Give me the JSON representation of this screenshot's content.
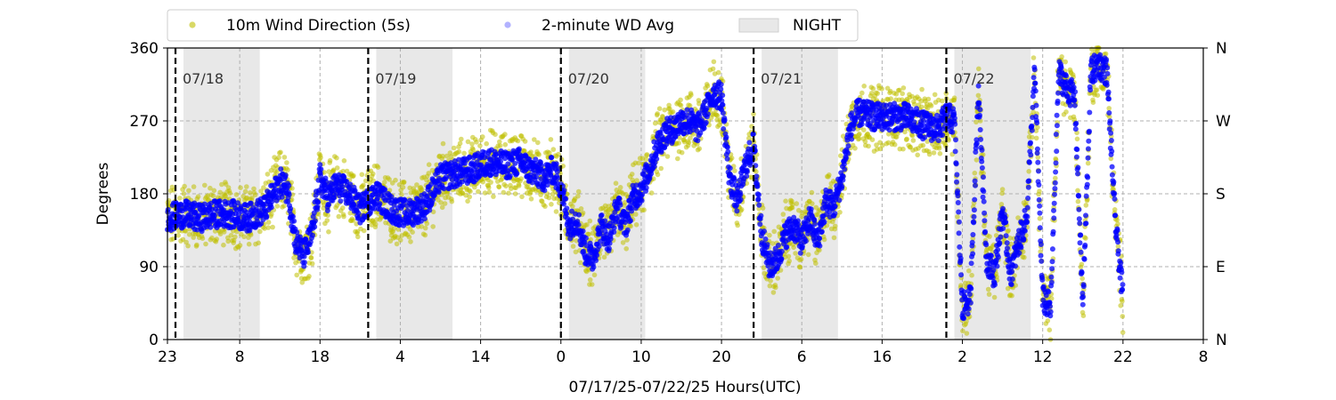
{
  "chart_data": {
    "type": "scatter",
    "title": "",
    "xlabel": "07/17/25-07/22/25  Hours(UTC)",
    "ylabel": "Degrees",
    "x_unit": "hours_elapsed",
    "xlim": [
      0,
      129
    ],
    "ylim": [
      0,
      360
    ],
    "yticks": [
      0,
      90,
      180,
      270,
      360
    ],
    "xtick_hours": [
      0,
      9,
      19,
      29,
      39,
      49,
      59,
      69,
      79,
      89,
      99,
      109,
      119,
      129
    ],
    "xtick_labels": [
      "23",
      "8",
      "18",
      "4",
      "14",
      "0",
      "10",
      "20",
      "6",
      "16",
      "2",
      "12",
      "22",
      "8"
    ],
    "right_axis_labels": [
      "N",
      "E",
      "S",
      "W",
      "N"
    ],
    "grid": true,
    "legend_placement": "top",
    "legend": [
      {
        "name": "10m Wind Direction (5s)",
        "color": "#bfbf00",
        "marker": "circle"
      },
      {
        "name": "2-minute WD Avg",
        "color": "#0000ff",
        "marker": "circle"
      },
      {
        "name": "NIGHT",
        "color": "#e8e8e8",
        "marker": "box"
      }
    ],
    "day_markers": [
      {
        "hour": 1,
        "label": "07/18"
      },
      {
        "hour": 25,
        "label": "07/19"
      },
      {
        "hour": 49,
        "label": "07/20"
      },
      {
        "hour": 73,
        "label": "07/21"
      },
      {
        "hour": 97,
        "label": "07/22"
      }
    ],
    "night_bands": [
      [
        2,
        11.5
      ],
      [
        26,
        35.5
      ],
      [
        50,
        59.5
      ],
      [
        74,
        83.5
      ],
      [
        98,
        107.5
      ]
    ],
    "series": [
      {
        "name": "10m Wind Direction (5s)",
        "color": "#bfbf00",
        "x": [
          0,
          2,
          4,
          6,
          8,
          10,
          12,
          13,
          14,
          15,
          16,
          17,
          18,
          19,
          20,
          21,
          22,
          23,
          24,
          25,
          26,
          28,
          30,
          32,
          34,
          36,
          38,
          40,
          42,
          44,
          45,
          46,
          47,
          48,
          49,
          50,
          51,
          52,
          53,
          54,
          55,
          56,
          57,
          58,
          59,
          60,
          61,
          62,
          63,
          64,
          65,
          66,
          67,
          68,
          69,
          70,
          71,
          72,
          73,
          74,
          75,
          76,
          77,
          78,
          79,
          80,
          81,
          82,
          83,
          84,
          85,
          86,
          88,
          90,
          92,
          94,
          96,
          97,
          98,
          99,
          100,
          101,
          102,
          103,
          104,
          105,
          106,
          107,
          108,
          109,
          110,
          111,
          112,
          113,
          114,
          115,
          116,
          117,
          118,
          119
        ],
        "y": [
          150,
          155,
          150,
          155,
          155,
          150,
          160,
          175,
          195,
          185,
          120,
          105,
          130,
          200,
          175,
          190,
          185,
          175,
          160,
          170,
          180,
          160,
          155,
          165,
          200,
          205,
          210,
          220,
          215,
          220,
          210,
          205,
          200,
          210,
          190,
          140,
          150,
          110,
          100,
          140,
          125,
          165,
          140,
          175,
          185,
          210,
          240,
          255,
          260,
          270,
          270,
          260,
          280,
          305,
          300,
          200,
          170,
          215,
          240,
          130,
          90,
          100,
          130,
          140,
          120,
          150,
          120,
          170,
          165,
          200,
          260,
          280,
          275,
          275,
          275,
          265,
          260,
          275,
          270,
          40,
          50,
          310,
          100,
          80,
          160,
          80,
          120,
          150,
          330,
          50,
          40,
          330,
          310,
          300,
          40,
          330,
          340,
          330,
          150,
          50
        ]
      },
      {
        "name": "2-minute WD Avg",
        "color": "#0000ff",
        "x": [
          0,
          2,
          4,
          6,
          8,
          10,
          12,
          13,
          14,
          15,
          16,
          17,
          18,
          19,
          20,
          21,
          22,
          23,
          24,
          25,
          26,
          28,
          30,
          32,
          34,
          36,
          38,
          40,
          42,
          44,
          45,
          46,
          47,
          48,
          49,
          50,
          51,
          52,
          53,
          54,
          55,
          56,
          57,
          58,
          59,
          60,
          61,
          62,
          63,
          64,
          65,
          66,
          67,
          68,
          69,
          70,
          71,
          72,
          73,
          74,
          75,
          76,
          77,
          78,
          79,
          80,
          81,
          82,
          83,
          84,
          85,
          86,
          88,
          90,
          92,
          94,
          96,
          97,
          98,
          99,
          100,
          101,
          102,
          103,
          104,
          105,
          106,
          107,
          108,
          109,
          110,
          111,
          112,
          113,
          114,
          115,
          116,
          117,
          118,
          119
        ],
        "y": [
          150,
          155,
          150,
          155,
          155,
          150,
          160,
          175,
          195,
          185,
          120,
          105,
          130,
          200,
          175,
          190,
          185,
          175,
          160,
          170,
          180,
          160,
          155,
          165,
          200,
          205,
          210,
          220,
          215,
          220,
          210,
          205,
          200,
          210,
          190,
          140,
          150,
          110,
          100,
          140,
          125,
          165,
          140,
          175,
          185,
          210,
          240,
          255,
          260,
          270,
          270,
          260,
          280,
          305,
          300,
          200,
          170,
          215,
          240,
          130,
          90,
          100,
          130,
          140,
          120,
          150,
          120,
          170,
          165,
          200,
          260,
          280,
          275,
          275,
          275,
          265,
          260,
          275,
          270,
          40,
          50,
          310,
          100,
          80,
          160,
          80,
          120,
          150,
          330,
          50,
          40,
          330,
          310,
          300,
          40,
          330,
          340,
          330,
          150,
          50
        ]
      }
    ]
  }
}
